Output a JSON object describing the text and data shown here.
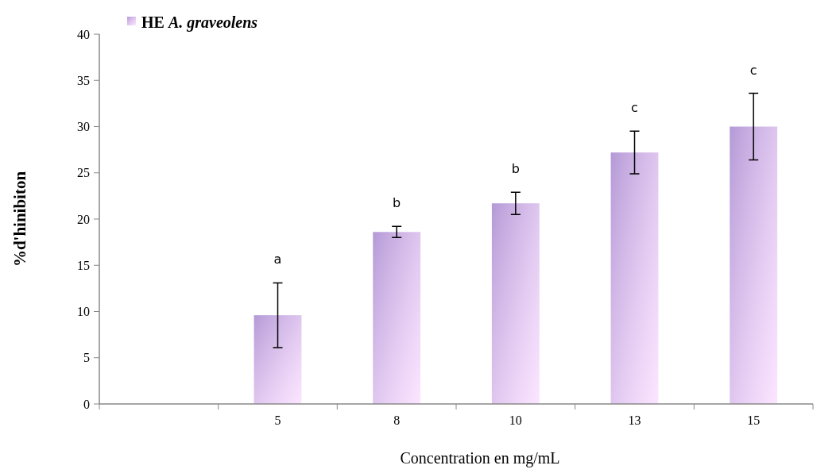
{
  "chart_data": {
    "type": "bar",
    "xlabel": "Concentration  en mg/mL",
    "ylabel": "%d'hinibiton",
    "categories": [
      null,
      "5",
      "8",
      "10",
      "13",
      "15"
    ],
    "series": [
      {
        "name": "HE A. graveolens",
        "color": "#b49ad6",
        "values": [
          null,
          9.6,
          18.6,
          21.7,
          27.2,
          30.0
        ],
        "errors": [
          null,
          3.5,
          0.6,
          1.2,
          2.3,
          3.6
        ]
      }
    ],
    "ylim": [
      0,
      40
    ],
    "yticks": [
      0,
      5,
      10,
      15,
      20,
      25,
      30,
      35,
      40
    ],
    "grid": false,
    "legend": "top left",
    "annotations": [
      "a",
      "b",
      "b",
      "c",
      "c"
    ]
  }
}
